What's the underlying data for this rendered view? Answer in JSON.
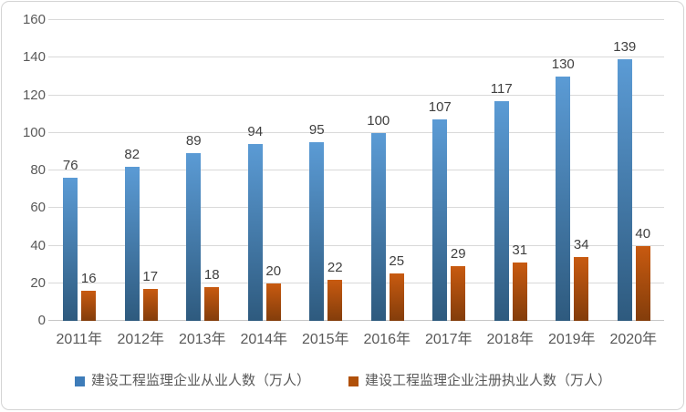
{
  "chart_data": {
    "type": "bar",
    "title": "",
    "xlabel": "",
    "ylabel": "",
    "categories": [
      "2011年",
      "2012年",
      "2013年",
      "2014年",
      "2015年",
      "2016年",
      "2017年",
      "2018年",
      "2019年",
      "2020年"
    ],
    "series": [
      {
        "name": "建设工程监理企业从业人数（万人）",
        "values": [
          76,
          82,
          89,
          94,
          95,
          100,
          107,
          117,
          130,
          139
        ],
        "bar_color_top": "#5B9BD5",
        "bar_color_bottom": "#2E5A7E",
        "legend_color": "#3E7CB9"
      },
      {
        "name": "建设工程监理企业注册执业人数（万人）",
        "values": [
          16,
          17,
          18,
          20,
          22,
          25,
          29,
          31,
          34,
          40
        ],
        "bar_color_top": "#C85A10",
        "bar_color_bottom": "#833D0B",
        "legend_color": "#B05009"
      }
    ],
    "ylim": [
      0,
      160
    ],
    "ytick_step": 20,
    "ytick_labels": [
      "0",
      "20",
      "40",
      "60",
      "80",
      "100",
      "120",
      "140",
      "160"
    ],
    "grid": true,
    "legend_position": "bottom",
    "gridline_color": "#D9D9D9",
    "tick_label_color": "#595959",
    "value_label_color": "#404040"
  }
}
